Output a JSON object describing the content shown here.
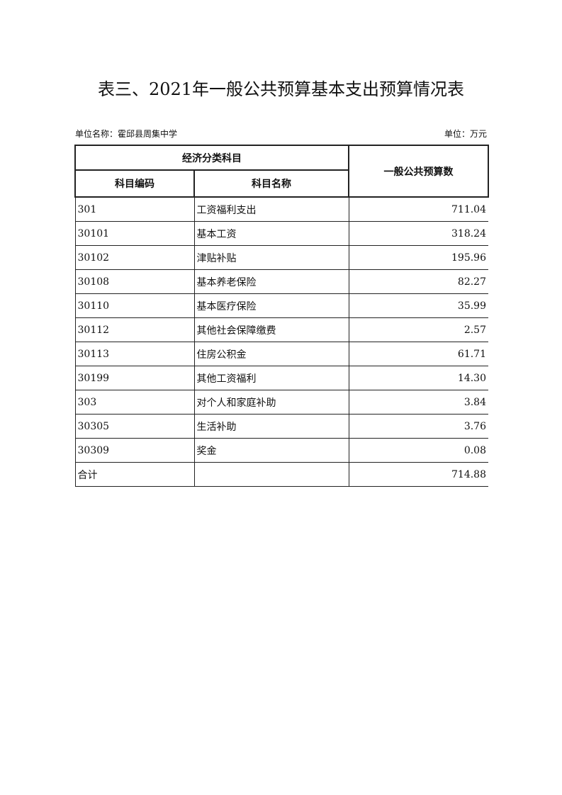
{
  "title": "表三、2021年一般公共预算基本支出预算情况表",
  "unit_name": "单位名称：霍邱县周集中学",
  "unit": "单位：万元",
  "headers": {
    "group": "经济分类科目",
    "code": "科目编码",
    "name": "科目名称",
    "amount": "一般公共预算数"
  },
  "rows": [
    {
      "code": "301",
      "name": "工资福利支出",
      "amount": "711.04"
    },
    {
      "code": "30101",
      "name": "基本工资",
      "amount": "318.24"
    },
    {
      "code": "30102",
      "name": "津贴补贴",
      "amount": "195.96"
    },
    {
      "code": "30108",
      "name": "基本养老保险",
      "amount": "82.27"
    },
    {
      "code": "30110",
      "name": "基本医疗保险",
      "amount": "35.99"
    },
    {
      "code": "30112",
      "name": "其他社会保障缴费",
      "amount": "2.57"
    },
    {
      "code": "30113",
      "name": "住房公积金",
      "amount": "61.71"
    },
    {
      "code": "30199",
      "name": "其他工资福利",
      "amount": "14.30"
    },
    {
      "code": "303",
      "name": "对个人和家庭补助",
      "amount": "3.84"
    },
    {
      "code": "30305",
      "name": "生活补助",
      "amount": "3.76"
    },
    {
      "code": "30309",
      "name": "奖金",
      "amount": "0.08"
    },
    {
      "code": "合计",
      "name": "",
      "amount": "714.88"
    }
  ]
}
